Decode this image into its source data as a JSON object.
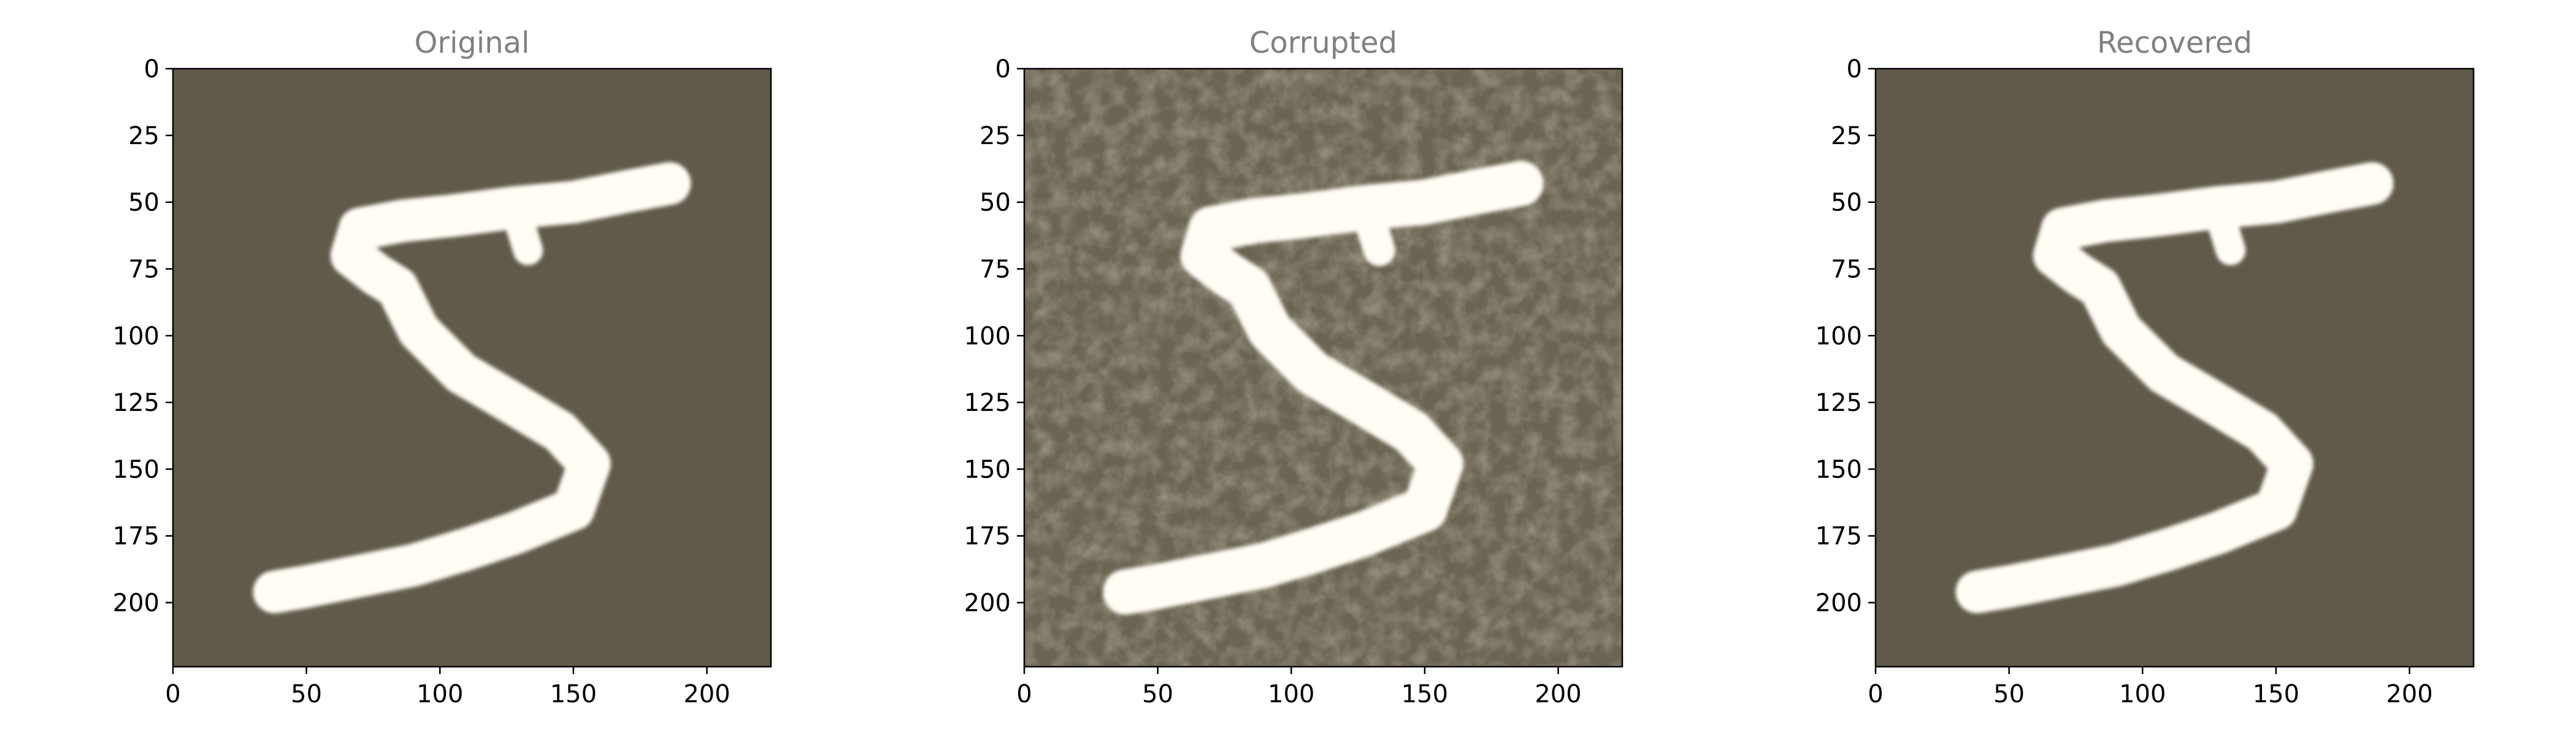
{
  "chart_data": [
    {
      "type": "heatmap",
      "title": "Original",
      "xlabel": "",
      "ylabel": "",
      "xlim": [
        0,
        224
      ],
      "ylim": [
        224,
        0
      ],
      "xticks": [
        0,
        50,
        100,
        150,
        200
      ],
      "yticks": [
        0,
        25,
        50,
        75,
        100,
        125,
        150,
        175,
        200
      ],
      "image_content": "handwritten digit 5, bright stroke on dark background",
      "noise": "none"
    },
    {
      "type": "heatmap",
      "title": "Corrupted",
      "xlabel": "",
      "ylabel": "",
      "xlim": [
        0,
        224
      ],
      "ylim": [
        224,
        0
      ],
      "xticks": [
        0,
        50,
        100,
        150,
        200
      ],
      "yticks": [
        0,
        25,
        50,
        75,
        100,
        125,
        150,
        175,
        200
      ],
      "image_content": "handwritten digit 5 with additive noise",
      "noise": "mottled"
    },
    {
      "type": "heatmap",
      "title": "Recovered",
      "xlabel": "",
      "ylabel": "",
      "xlim": [
        0,
        224
      ],
      "ylim": [
        224,
        0
      ],
      "xticks": [
        0,
        50,
        100,
        150,
        200
      ],
      "yticks": [
        0,
        25,
        50,
        75,
        100,
        125,
        150,
        175,
        200
      ],
      "image_content": "handwritten digit 5, denoised",
      "noise": "none"
    }
  ],
  "colors": {
    "background": "#615a4b",
    "background_noisy": "#6b6453",
    "stroke": "#fffdf4",
    "title": "#808080",
    "axis": "#000000"
  }
}
